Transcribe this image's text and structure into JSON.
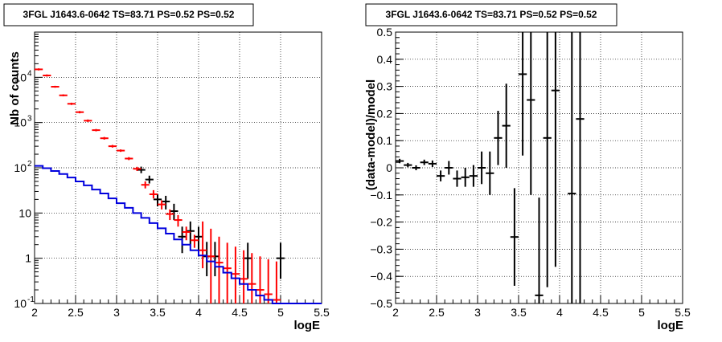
{
  "chart_data": [
    {
      "type": "line",
      "title": "3FGL J1643.6-0642 TS=83.71 PS=0.52 PS=0.52",
      "xlabel": "logE",
      "ylabel": "Nb of counts",
      "y_scale": "log",
      "xlim": [
        2,
        5.5
      ],
      "ylim": [
        0.1,
        100000
      ],
      "grid": true,
      "x_ticks": [
        "2",
        "2.5",
        "3",
        "3.5",
        "4",
        "4.5",
        "5",
        "5.5"
      ],
      "y_ticks": [
        {
          "value": 0.1,
          "label": "10",
          "exp": "-1"
        },
        {
          "value": 1,
          "label": "1",
          "exp": ""
        },
        {
          "value": 10,
          "label": "10",
          "exp": ""
        },
        {
          "value": 100,
          "label": "10",
          "exp": "2"
        },
        {
          "value": 1000,
          "label": "10",
          "exp": "3"
        },
        {
          "value": 10000,
          "label": "10",
          "exp": "4"
        }
      ],
      "series": [
        {
          "color": "#000000",
          "bin_width": 0.1,
          "points": [
            {
              "x": 3.3,
              "y": 90,
              "lo": 76,
              "hi": 106
            },
            {
              "x": 3.4,
              "y": 55,
              "lo": 45,
              "hi": 67
            },
            {
              "x": 3.5,
              "y": 20,
              "lo": 14,
              "hi": 26
            },
            {
              "x": 3.6,
              "y": 18,
              "lo": 12,
              "hi": 24
            },
            {
              "x": 3.7,
              "y": 11,
              "lo": 7,
              "hi": 16
            },
            {
              "x": 3.8,
              "y": 3,
              "lo": 1.3,
              "hi": 5
            },
            {
              "x": 3.9,
              "y": 4,
              "lo": 2,
              "hi": 6.5
            },
            {
              "x": 4.0,
              "y": 3,
              "lo": 1.3,
              "hi": 5
            },
            {
              "x": 4.1,
              "y": 1.1,
              "lo": 0.4,
              "hi": 2.3
            },
            {
              "x": 4.2,
              "y": 1.1,
              "lo": 0.4,
              "hi": 2.3
            },
            {
              "x": 4.6,
              "y": 1,
              "lo": 0.35,
              "hi": 2.2
            },
            {
              "x": 5.0,
              "y": 1,
              "lo": 0.35,
              "hi": 2.2
            }
          ]
        },
        {
          "color": "#ff0000",
          "bin_width": 0.1,
          "points": [
            {
              "x": 2.05,
              "y": 15000,
              "lo": 14200,
              "hi": 15800
            },
            {
              "x": 2.15,
              "y": 11000,
              "lo": 10400,
              "hi": 11600
            },
            {
              "x": 2.25,
              "y": 6200,
              "lo": 5900,
              "hi": 6500
            },
            {
              "x": 2.35,
              "y": 4000,
              "lo": 3800,
              "hi": 4200
            },
            {
              "x": 2.45,
              "y": 2600,
              "lo": 2450,
              "hi": 2750
            },
            {
              "x": 2.55,
              "y": 1700,
              "lo": 1600,
              "hi": 1800
            },
            {
              "x": 2.65,
              "y": 1100,
              "lo": 1030,
              "hi": 1170
            },
            {
              "x": 2.75,
              "y": 680,
              "lo": 640,
              "hi": 720
            },
            {
              "x": 2.85,
              "y": 450,
              "lo": 420,
              "hi": 480
            },
            {
              "x": 2.95,
              "y": 300,
              "lo": 280,
              "hi": 320
            },
            {
              "x": 3.05,
              "y": 240,
              "lo": 225,
              "hi": 255
            },
            {
              "x": 3.15,
              "y": 160,
              "lo": 148,
              "hi": 172
            },
            {
              "x": 3.25,
              "y": 95,
              "lo": 85,
              "hi": 105
            },
            {
              "x": 3.35,
              "y": 42,
              "lo": 35,
              "hi": 50
            },
            {
              "x": 3.45,
              "y": 26,
              "lo": 21,
              "hi": 32
            },
            {
              "x": 3.55,
              "y": 15.5,
              "lo": 12,
              "hi": 19
            },
            {
              "x": 3.65,
              "y": 9.5,
              "lo": 7,
              "hi": 12
            },
            {
              "x": 3.75,
              "y": 7,
              "lo": 5,
              "hi": 9
            },
            {
              "x": 3.85,
              "y": 3.8,
              "lo": 2.5,
              "hi": 5
            },
            {
              "x": 3.95,
              "y": 2.5,
              "lo": 1.7,
              "hi": 3.3
            },
            {
              "x": 4.05,
              "y": 1.5,
              "lo": 0.6,
              "hi": 6.5
            },
            {
              "x": 4.15,
              "y": 1.1,
              "lo": 0.1,
              "hi": 4.5
            },
            {
              "x": 4.25,
              "y": 0.8,
              "lo": 0.1,
              "hi": 3
            },
            {
              "x": 4.35,
              "y": 0.6,
              "lo": 0.1,
              "hi": 2.2
            },
            {
              "x": 4.45,
              "y": 0.45,
              "lo": 0.1,
              "hi": 1.8
            },
            {
              "x": 4.55,
              "y": 0.35,
              "lo": 0.1,
              "hi": 1.5
            },
            {
              "x": 4.65,
              "y": 0.27,
              "lo": 0.1,
              "hi": 1.3
            },
            {
              "x": 4.75,
              "y": 0.2,
              "lo": 0.1,
              "hi": 1.1
            },
            {
              "x": 4.85,
              "y": 0.16,
              "lo": 0.1,
              "hi": 0.95
            },
            {
              "x": 4.95,
              "y": 0.12,
              "lo": 0.1,
              "hi": 0.85
            }
          ]
        },
        {
          "color": "#0000dd",
          "step": true,
          "bin_width": 0.1,
          "bins": [
            {
              "x": 2.0,
              "y": 110
            },
            {
              "x": 2.1,
              "y": 98
            },
            {
              "x": 2.2,
              "y": 85
            },
            {
              "x": 2.3,
              "y": 73
            },
            {
              "x": 2.4,
              "y": 61
            },
            {
              "x": 2.5,
              "y": 50
            },
            {
              "x": 2.6,
              "y": 41
            },
            {
              "x": 2.7,
              "y": 33
            },
            {
              "x": 2.8,
              "y": 27
            },
            {
              "x": 2.9,
              "y": 21
            },
            {
              "x": 3.0,
              "y": 16.5
            },
            {
              "x": 3.1,
              "y": 13
            },
            {
              "x": 3.2,
              "y": 10
            },
            {
              "x": 3.3,
              "y": 7.8
            },
            {
              "x": 3.4,
              "y": 6
            },
            {
              "x": 3.5,
              "y": 4.6
            },
            {
              "x": 3.6,
              "y": 3.5
            },
            {
              "x": 3.7,
              "y": 2.6
            },
            {
              "x": 3.8,
              "y": 2
            },
            {
              "x": 3.9,
              "y": 1.5
            },
            {
              "x": 4.0,
              "y": 1.15
            },
            {
              "x": 4.1,
              "y": 0.85
            },
            {
              "x": 4.2,
              "y": 0.65
            },
            {
              "x": 4.3,
              "y": 0.48
            },
            {
              "x": 4.4,
              "y": 0.36
            },
            {
              "x": 4.5,
              "y": 0.27
            },
            {
              "x": 4.6,
              "y": 0.2
            },
            {
              "x": 4.7,
              "y": 0.15
            },
            {
              "x": 4.8,
              "y": 0.12
            },
            {
              "x": 4.9,
              "y": 0.1
            },
            {
              "x": 5.0,
              "y": 0.1
            },
            {
              "x": 5.1,
              "y": 0.1
            },
            {
              "x": 5.2,
              "y": 0.1
            },
            {
              "x": 5.3,
              "y": 0.1
            },
            {
              "x": 5.4,
              "y": 0.1
            }
          ]
        }
      ]
    },
    {
      "type": "scatter",
      "title": "3FGL J1643.6-0642 TS=83.71 PS=0.52 PS=0.52",
      "xlabel": "logE",
      "ylabel": "(data-model)/model",
      "xlim": [
        2,
        5.5
      ],
      "ylim": [
        -0.5,
        0.5
      ],
      "grid": true,
      "x_ticks": [
        "2",
        "2.5",
        "3",
        "3.5",
        "4",
        "4.5",
        "5",
        "5.5"
      ],
      "y_ticks": [
        "−0.5",
        "−0.4",
        "−0.3",
        "−0.2",
        "−0.1",
        "0",
        "0.1",
        "0.2",
        "0.3",
        "0.4",
        "0.5"
      ],
      "series": [
        {
          "color": "#000000",
          "bin_width": 0.1,
          "points": [
            {
              "x": 2.05,
              "y": 0.025,
              "err": 0.008
            },
            {
              "x": 2.15,
              "y": 0.01,
              "err": 0.008
            },
            {
              "x": 2.25,
              "y": 0.0,
              "err": 0.009
            },
            {
              "x": 2.35,
              "y": 0.02,
              "err": 0.01
            },
            {
              "x": 2.45,
              "y": 0.015,
              "err": 0.012
            },
            {
              "x": 2.55,
              "y": -0.03,
              "err": 0.02
            },
            {
              "x": 2.65,
              "y": 0.0,
              "err": 0.025
            },
            {
              "x": 2.75,
              "y": -0.04,
              "err": 0.03
            },
            {
              "x": 2.85,
              "y": -0.035,
              "err": 0.035
            },
            {
              "x": 2.95,
              "y": -0.03,
              "err": 0.04
            },
            {
              "x": 3.05,
              "y": 0.0,
              "err": 0.06
            },
            {
              "x": 3.15,
              "y": -0.02,
              "err": 0.08
            },
            {
              "x": 3.25,
              "y": 0.11,
              "err": 0.1
            },
            {
              "x": 3.35,
              "y": 0.155,
              "err": 0.155
            },
            {
              "x": 3.45,
              "y": -0.255,
              "err": 0.18
            },
            {
              "x": 3.55,
              "y": 0.345,
              "err": 0.3
            },
            {
              "x": 3.65,
              "y": 0.25,
              "err": 0.35
            },
            {
              "x": 3.75,
              "y": -0.47,
              "err": 0.36
            },
            {
              "x": 3.85,
              "y": 0.11,
              "err": 0.55
            },
            {
              "x": 3.95,
              "y": 0.285,
              "err": 0.65
            },
            {
              "x": 4.15,
              "y": -0.095,
              "err": 0.9
            },
            {
              "x": 4.25,
              "y": 0.18,
              "err": 0.9
            }
          ]
        }
      ]
    }
  ]
}
